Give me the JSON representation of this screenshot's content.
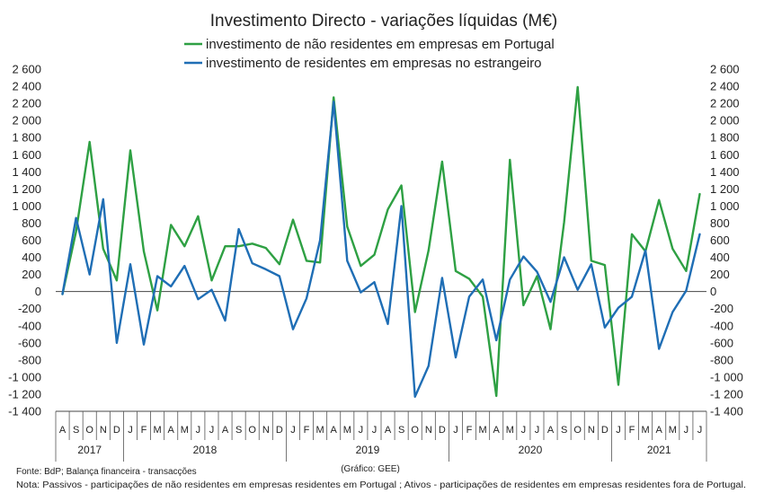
{
  "chart_data": {
    "type": "line",
    "title": "Investimento Directo - variações líquidas (M€)",
    "legend_position": "top",
    "grid": false,
    "ylim": [
      -1400,
      2600
    ],
    "yticks": [
      2600,
      2400,
      2200,
      2000,
      1800,
      1600,
      1400,
      1200,
      1000,
      800,
      600,
      400,
      200,
      0,
      -200,
      -400,
      -600,
      -800,
      -1000,
      -1200,
      -1400
    ],
    "ytick_labels": [
      "2 600",
      "2 400",
      "2 200",
      "2 000",
      "1 800",
      "1 600",
      "1 400",
      "1 200",
      "1 000",
      "800",
      "600",
      "400",
      "200",
      "0",
      "-200",
      "-400",
      "-600",
      "-800",
      "-1 000",
      "-1 200",
      "-1 400"
    ],
    "x": [
      "A",
      "S",
      "O",
      "N",
      "D",
      "J",
      "F",
      "M",
      "A",
      "M",
      "J",
      "J",
      "A",
      "S",
      "O",
      "N",
      "D",
      "J",
      "F",
      "M",
      "A",
      "M",
      "J",
      "J",
      "A",
      "S",
      "O",
      "N",
      "D",
      "J",
      "F",
      "M",
      "A",
      "M",
      "J",
      "J",
      "A",
      "S",
      "O",
      "N",
      "D",
      "J",
      "F",
      "M",
      "A",
      "M",
      "J",
      "J"
    ],
    "years": [
      {
        "label": "2017",
        "start": 0,
        "count": 5
      },
      {
        "label": "2018",
        "start": 5,
        "count": 12
      },
      {
        "label": "2019",
        "start": 17,
        "count": 12
      },
      {
        "label": "2020",
        "start": 29,
        "count": 12
      },
      {
        "label": "2021",
        "start": 41,
        "count": 7
      }
    ],
    "series": [
      {
        "name": "investimento de não residentes em empresas em Portugal",
        "color": "#2ea043",
        "values": [
          -30,
          700,
          1750,
          500,
          130,
          1650,
          470,
          -220,
          780,
          530,
          880,
          130,
          530,
          530,
          560,
          510,
          320,
          840,
          360,
          340,
          2270,
          760,
          300,
          430,
          960,
          1240,
          -240,
          480,
          1520,
          240,
          150,
          -60,
          -1220,
          1540,
          -160,
          180,
          -440,
          810,
          2390,
          360,
          310,
          -1090,
          670,
          470,
          1070,
          500,
          240,
          1140
        ]
      },
      {
        "name": "investimento de residentes em empresas no estrangeiro",
        "color": "#1f6eb5",
        "values": [
          -30,
          860,
          200,
          1080,
          -600,
          320,
          -620,
          180,
          60,
          300,
          -90,
          20,
          -340,
          730,
          330,
          260,
          180,
          -440,
          -80,
          600,
          2220,
          360,
          -10,
          110,
          -380,
          1000,
          -1230,
          -870,
          160,
          -770,
          -60,
          140,
          -570,
          140,
          410,
          230,
          -120,
          400,
          20,
          320,
          -420,
          -190,
          -60,
          480,
          -670,
          -240,
          10,
          670
        ]
      }
    ]
  },
  "footer": {
    "source": "Fonte: BdP; Balança financeira - transacções",
    "credit": "(Gráfico: GEE)",
    "note": "Nota: Passivos - participações de não residentes em empresas residentes em Portugal ; Ativos - participações de residentes em empresas residentes fora de Portugal."
  }
}
